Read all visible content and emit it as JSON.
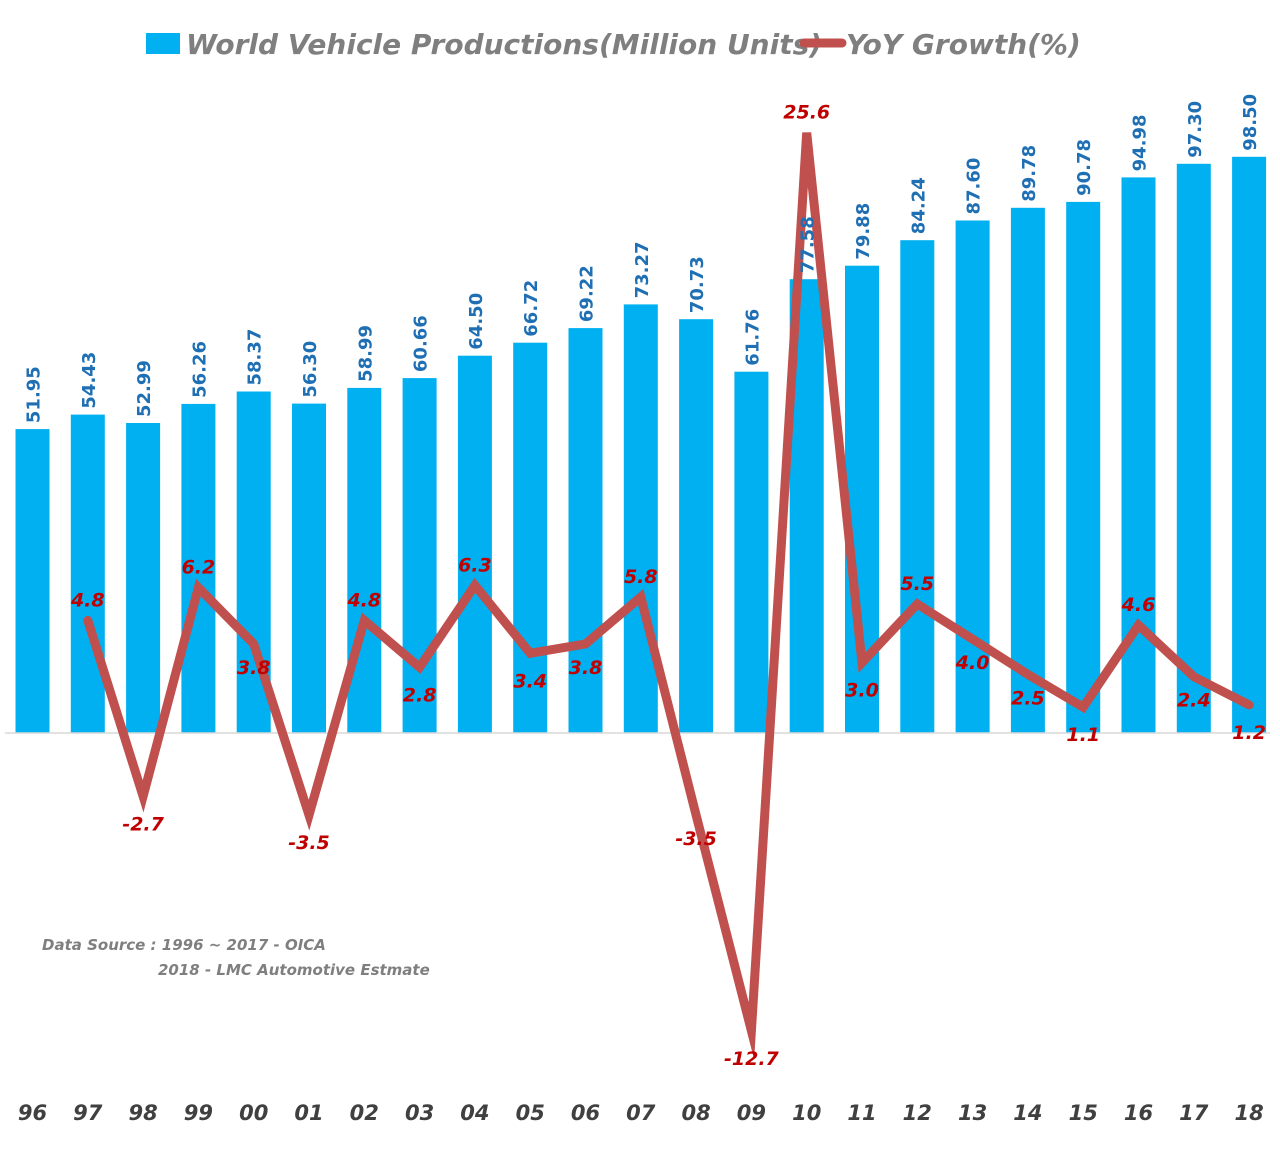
{
  "chart_data": {
    "type": "bar",
    "title": "",
    "xlabel": "",
    "ylabel": "",
    "categories": [
      "96",
      "97",
      "98",
      "99",
      "00",
      "01",
      "02",
      "03",
      "04",
      "05",
      "06",
      "07",
      "08",
      "09",
      "10",
      "11",
      "12",
      "13",
      "14",
      "15",
      "16",
      "17",
      "18"
    ],
    "series": [
      {
        "name": "World Vehicle Productions(Million Units)",
        "type": "bar",
        "color": "#00b0f0",
        "values": [
          51.95,
          54.43,
          52.99,
          56.26,
          58.37,
          56.3,
          58.99,
          60.66,
          64.5,
          66.72,
          69.22,
          73.27,
          70.73,
          61.76,
          77.58,
          79.88,
          84.24,
          87.6,
          89.78,
          90.78,
          94.98,
          97.3,
          98.5
        ],
        "labels": [
          "51.95",
          "54.43",
          "52.99",
          "56.26",
          "58.37",
          "56.30",
          "58.99",
          "60.66",
          "64.50",
          "66.72",
          "69.22",
          "73.27",
          "70.73",
          "61.76",
          "77.58",
          "79.88",
          "84.24",
          "87.60",
          "89.78",
          "90.78",
          "94.98",
          "97.30",
          "98.50"
        ],
        "ylim": [
          0,
          100
        ]
      },
      {
        "name": "YoY Growth(%)",
        "type": "line",
        "color": "#c0504d",
        "values": [
          null,
          4.8,
          -2.7,
          6.2,
          3.8,
          -3.5,
          4.8,
          2.8,
          6.3,
          3.4,
          3.8,
          5.8,
          -3.5,
          -12.7,
          25.6,
          3.0,
          5.5,
          4.0,
          2.5,
          1.1,
          4.6,
          2.4,
          1.2
        ],
        "labels": [
          "",
          "4.8",
          "-2.7",
          "6.2",
          "3.8",
          "-3.5",
          "4.8",
          "2.8",
          "6.3",
          "3.4",
          "3.8",
          "5.8",
          "-3.5",
          "-12.7",
          "25.6",
          "3.0",
          "5.5",
          "4.0",
          "2.5",
          "1.1",
          "4.6",
          "2.4",
          "1.2"
        ],
        "ylim": [
          -14,
          27
        ]
      }
    ],
    "legend": "top-center",
    "grid": false
  },
  "source_note": {
    "line1": "Data Source :  1996 ~ 2017 - OICA",
    "line2": "2018 - LMC Automotive Estmate"
  }
}
